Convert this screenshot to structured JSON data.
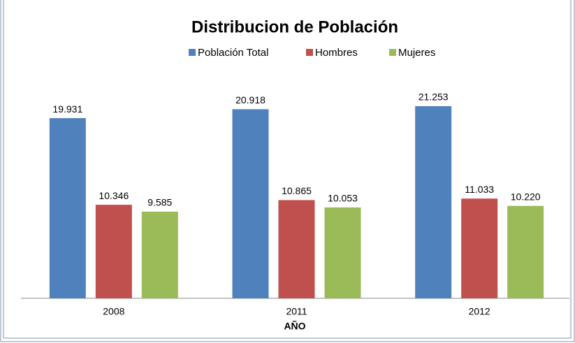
{
  "chart_data": {
    "type": "bar",
    "title": "Distribucion de Población",
    "x_label": "AÑO",
    "categories": [
      "2008",
      "2011",
      "2012"
    ],
    "series": [
      {
        "name": "Población Total",
        "color": "#4f81bd",
        "values": [
          19931,
          20918,
          21253
        ],
        "value_labels": [
          "19.931",
          "20.918",
          "21.253"
        ]
      },
      {
        "name": "Hombres",
        "color": "#c0504d",
        "values": [
          10346,
          10865,
          11033
        ],
        "value_labels": [
          "10.346",
          "10.865",
          "11.033"
        ]
      },
      {
        "name": "Mujeres",
        "color": "#9bbb59",
        "values": [
          9585,
          10053,
          10220
        ],
        "value_labels": [
          "9.585",
          "10.053",
          "10.220"
        ]
      }
    ],
    "legend": "top"
  }
}
